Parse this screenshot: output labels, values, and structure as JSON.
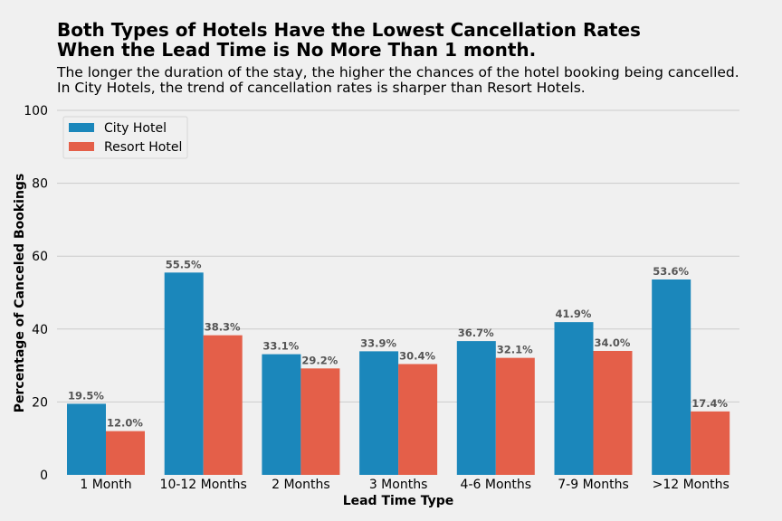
{
  "colors": {
    "background": "#f0f0f0",
    "city_hotel": "#1b87bb",
    "resort_hotel": "#e45f49",
    "grid": "#cbcbcb",
    "data_label": "#555555"
  },
  "chart_data": {
    "type": "bar",
    "title": [
      "Both Types of Hotels Have the Lowest Cancellation Rates",
      "When the Lead Time is No More Than 1 month."
    ],
    "subtitle": [
      "The longer the duration of the stay, the higher the chances of the hotel booking being cancelled.",
      "In City Hotels, the trend of cancellation rates is sharper than Resort Hotels."
    ],
    "xlabel": "Lead Time Type",
    "ylabel": "Percentage of Canceled Bookings",
    "ylim": [
      0,
      100
    ],
    "yticks": [
      0,
      20,
      40,
      60,
      80,
      100
    ],
    "grid": "horizontal",
    "legend_position": "top-left",
    "categories": [
      "1 Month",
      "10-12 Months",
      "2 Months",
      "3 Months",
      "4-6 Months",
      "7-9 Months",
      ">12 Months"
    ],
    "series": [
      {
        "name": "City Hotel",
        "color": "#1b87bb",
        "values": [
          19.5,
          55.5,
          33.1,
          33.9,
          36.7,
          41.9,
          53.6
        ],
        "labels": [
          "19.5%",
          "55.5%",
          "33.1%",
          "33.9%",
          "36.7%",
          "41.9%",
          "53.6%"
        ]
      },
      {
        "name": "Resort Hotel",
        "color": "#e45f49",
        "values": [
          12.0,
          38.3,
          29.2,
          30.4,
          32.1,
          34.0,
          17.4
        ],
        "labels": [
          "12.0%",
          "38.3%",
          "29.2%",
          "30.4%",
          "32.1%",
          "34.0%",
          "17.4%"
        ]
      }
    ]
  }
}
